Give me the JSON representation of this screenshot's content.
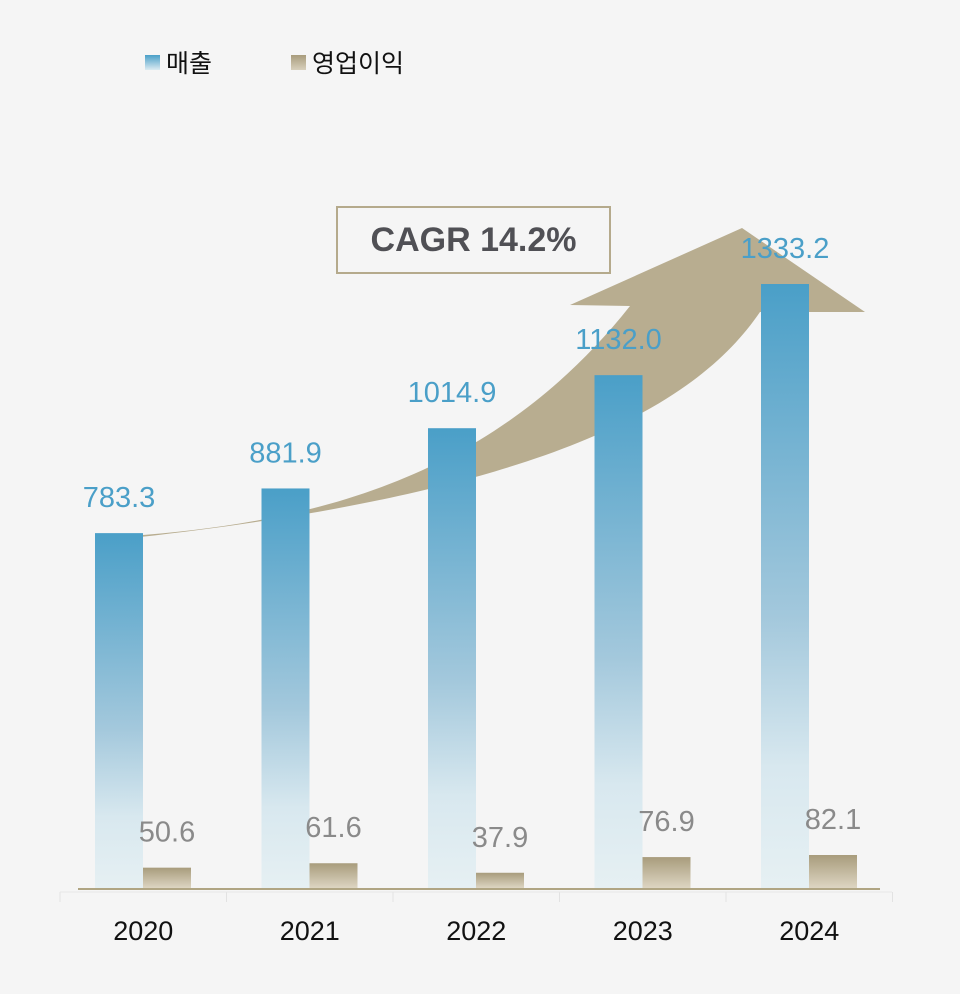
{
  "chart_data": {
    "type": "bar",
    "categories": [
      "2020",
      "2021",
      "2022",
      "2023",
      "2024"
    ],
    "series": [
      {
        "name": "매출",
        "values": [
          783.3,
          881.9,
          1014.9,
          1132.0,
          1333.2
        ],
        "color": "#4a9fc8"
      },
      {
        "name": "영업이익",
        "values": [
          50.6,
          61.6,
          37.9,
          76.9,
          82.1
        ],
        "color": "#a89c7c"
      }
    ],
    "labels": {
      "revenue": [
        "783.3",
        "881.9",
        "1014.9",
        "1132.0",
        "1333.2"
      ],
      "profit": [
        "50.6",
        "61.6",
        "37.9",
        "76.9",
        "82.1"
      ]
    },
    "annotation": "CAGR 14.2%",
    "legend_position": "top-left",
    "grid": false,
    "label_colors": {
      "revenue": "#4a9fc8",
      "profit": "#8a8a8a"
    },
    "arrow_color": "#b8ad90"
  }
}
